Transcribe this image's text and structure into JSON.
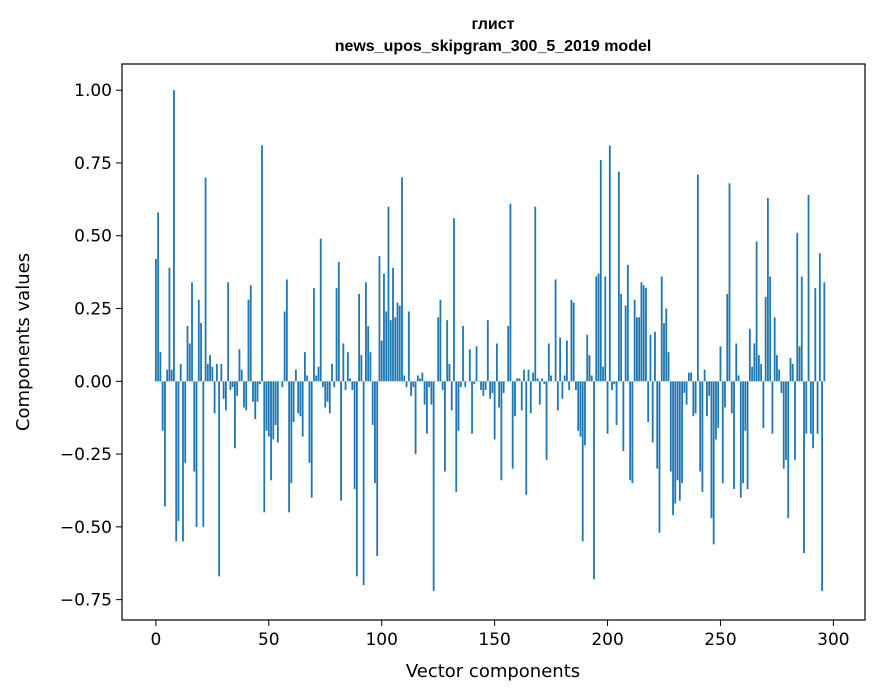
{
  "chart_data": {
    "type": "bar",
    "title_line1": "глист",
    "title_line2": "news_upos_skipgram_300_5_2019 model",
    "xlabel": "Vector components",
    "ylabel": "Components values",
    "xlim": [
      -15,
      314
    ],
    "ylim": [
      -0.82,
      1.09
    ],
    "x_ticks": [
      0,
      50,
      100,
      150,
      200,
      250,
      300
    ],
    "x_tick_labels": [
      "0",
      "50",
      "100",
      "150",
      "200",
      "250",
      "300"
    ],
    "y_ticks": [
      1.0,
      0.75,
      0.5,
      0.25,
      0.0,
      -0.25,
      -0.5,
      -0.75
    ],
    "y_tick_labels": [
      "1.00",
      "0.75",
      "0.50",
      "0.25",
      "0.00",
      "−0.25",
      "−0.50",
      "−0.75"
    ],
    "bar_color": "#1f77b4",
    "grid": false,
    "values": [
      0.42,
      0.58,
      0.1,
      -0.17,
      -0.43,
      0.04,
      0.39,
      0.04,
      1.0,
      -0.55,
      -0.48,
      0.06,
      -0.55,
      -0.28,
      0.19,
      0.13,
      0.34,
      -0.31,
      -0.5,
      0.28,
      0.2,
      -0.5,
      0.7,
      0.06,
      0.09,
      0.05,
      -0.11,
      0.06,
      -0.67,
      0.06,
      -0.06,
      -0.1,
      0.34,
      -0.03,
      -0.02,
      -0.23,
      -0.05,
      0.11,
      0.04,
      -0.09,
      -0.1,
      0.28,
      0.33,
      -0.07,
      -0.13,
      -0.07,
      -0.01,
      0.81,
      -0.45,
      -0.17,
      -0.19,
      -0.34,
      -0.2,
      -0.15,
      -0.21,
      0.0,
      -0.02,
      0.24,
      0.35,
      -0.45,
      -0.35,
      -0.14,
      0.04,
      -0.11,
      -0.12,
      -0.19,
      0.1,
      0.02,
      -0.28,
      -0.4,
      0.32,
      0.02,
      0.05,
      0.49,
      -0.02,
      -0.09,
      -0.07,
      -0.11,
      0.06,
      -0.02,
      0.32,
      0.41,
      -0.41,
      0.13,
      -0.03,
      0.1,
      0.01,
      -0.03,
      -0.37,
      -0.67,
      0.3,
      0.09,
      -0.7,
      0.34,
      0.19,
      0.1,
      -0.15,
      -0.35,
      -0.6,
      0.43,
      0.14,
      0.37,
      0.24,
      0.6,
      0.21,
      0.39,
      0.22,
      0.27,
      0.26,
      0.7,
      0.02,
      -0.02,
      0.24,
      -0.05,
      -0.02,
      -0.25,
      0.02,
      0.01,
      0.03,
      -0.08,
      -0.18,
      -0.02,
      -0.08,
      -0.72,
      0.0,
      0.22,
      0.28,
      -0.03,
      -0.31,
      0.21,
      0.06,
      -0.1,
      0.56,
      -0.38,
      -0.17,
      -0.02,
      0.19,
      -0.02,
      0.0,
      0.11,
      -0.18,
      -0.01,
      0.12,
      0.0,
      -0.03,
      -0.05,
      -0.03,
      0.21,
      -0.06,
      -0.04,
      -0.2,
      0.13,
      -0.09,
      -0.34,
      -0.04,
      0.0,
      0.19,
      0.61,
      -0.3,
      -0.12,
      0.01,
      0.01,
      -0.1,
      0.04,
      -0.39,
      0.04,
      -0.11,
      0.03,
      0.6,
      0.01,
      -0.08,
      0.01,
      -0.01,
      -0.27,
      0.13,
      0.02,
      0.0,
      0.35,
      -0.1,
      0.15,
      -0.06,
      0.02,
      0.14,
      -0.03,
      0.28,
      0.27,
      -0.03,
      -0.17,
      -0.19,
      -0.55,
      -0.22,
      0.16,
      0.09,
      0.02,
      -0.68,
      0.36,
      0.37,
      0.76,
      0.05,
      0.36,
      -0.18,
      0.81,
      -0.03,
      -0.01,
      -0.15,
      0.72,
      0.3,
      -0.24,
      0.26,
      0.4,
      -0.34,
      -0.35,
      0.28,
      0.22,
      0.22,
      0.34,
      0.33,
      0.32,
      -0.14,
      0.16,
      -0.21,
      0.17,
      -0.3,
      -0.52,
      0.36,
      0.2,
      0.25,
      0.1,
      -0.31,
      -0.46,
      -0.42,
      -0.34,
      -0.41,
      -0.35,
      -0.04,
      -0.08,
      0.03,
      0.03,
      -0.12,
      -0.11,
      0.71,
      -0.31,
      -0.38,
      0.04,
      -0.12,
      -0.05,
      -0.47,
      -0.56,
      -0.2,
      -0.16,
      0.12,
      -0.35,
      -0.09,
      0.3,
      0.68,
      -0.11,
      -0.37,
      0.13,
      0.02,
      -0.4,
      -0.35,
      -0.17,
      -0.37,
      0.18,
      0.05,
      0.13,
      0.48,
      0.09,
      0.06,
      -0.16,
      0.29,
      0.63,
      0.36,
      -0.18,
      0.22,
      0.09,
      0.04,
      -0.04,
      -0.3,
      -0.27,
      -0.47,
      0.08,
      0.06,
      -0.27,
      0.51,
      0.12,
      0.36,
      -0.59,
      -0.18,
      0.64,
      -0.18,
      -0.23,
      0.32,
      -0.18,
      0.44,
      -0.72,
      0.34
    ]
  }
}
